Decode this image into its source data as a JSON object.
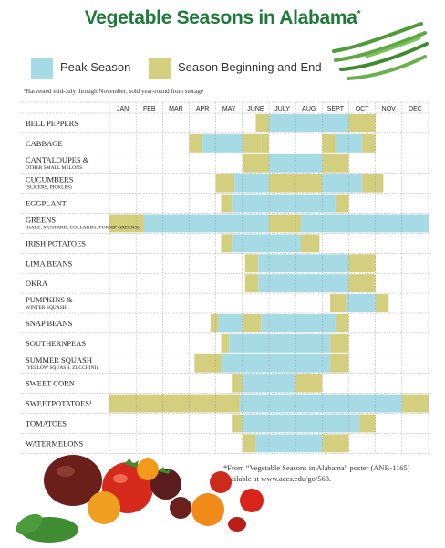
{
  "title": "Vegetable Seasons in Alabama",
  "title_mark": "*",
  "legend": {
    "peak": {
      "label": "Peak Season",
      "color": "#a6dbe6"
    },
    "edge": {
      "label": "Season Beginning and End",
      "color": "#d3cf7e"
    }
  },
  "footnote_top": "¹Harvested mid-July through November; sold year-round from storage",
  "source_note": "*From “Vegetable Seasons in Alabama” poster (ANR-1165) available at www.aces.edu/go/563.",
  "chart_data": {
    "type": "table",
    "categories": [
      "JAN",
      "FEB",
      "MAR",
      "APR",
      "MAY",
      "JUNE",
      "JULY",
      "AUG",
      "SEPT",
      "OCT",
      "NOV",
      "DEC"
    ],
    "legend_placement": "top-left",
    "grid": true,
    "rows": [
      {
        "name": "BELL PEPPERS",
        "sub": "",
        "edge": [
          [
            5.5,
            6.0
          ],
          [
            9.0,
            10.0
          ]
        ],
        "peak": [
          [
            6.0,
            9.0
          ]
        ]
      },
      {
        "name": "CABBAGE",
        "sub": "",
        "edge": [
          [
            3.0,
            3.5
          ],
          [
            5.0,
            5.7
          ],
          [
            5.7,
            6.0
          ],
          [
            8.0,
            8.5
          ],
          [
            9.5,
            10.0
          ]
        ],
        "peak": [
          [
            3.5,
            5.0
          ],
          [
            8.5,
            9.5
          ]
        ]
      },
      {
        "name": "CANTALOUPES &",
        "sub": "OTHER SMALL MELONS",
        "edge": [
          [
            5.0,
            6.0
          ],
          [
            8.0,
            9.0
          ]
        ],
        "peak": [
          [
            6.0,
            8.0
          ]
        ]
      },
      {
        "name": "CUCUMBERS",
        "sub": "(SLICERS, PICKLES)",
        "edge": [
          [
            4.0,
            4.7
          ],
          [
            6.0,
            8.0
          ],
          [
            9.5,
            10.3
          ]
        ],
        "peak": [
          [
            4.7,
            6.0
          ],
          [
            8.0,
            9.5
          ]
        ]
      },
      {
        "name": "EGGPLANT",
        "sub": "",
        "edge": [
          [
            4.2,
            4.6
          ],
          [
            8.5,
            9.0
          ]
        ],
        "peak": [
          [
            4.6,
            8.5
          ]
        ]
      },
      {
        "name": "GREENS",
        "sub": "(KALE, MUSTARD, COLLARDS, TURNIP GREENS)",
        "edge": [
          [
            0,
            1.3
          ],
          [
            6.0,
            7.2
          ]
        ],
        "peak": [
          [
            1.3,
            6.0
          ],
          [
            7.2,
            12.0
          ]
        ]
      },
      {
        "name": "IRISH POTATOES",
        "sub": "",
        "edge": [
          [
            4.2,
            4.6
          ],
          [
            7.2,
            7.9
          ]
        ],
        "peak": [
          [
            4.6,
            7.2
          ]
        ]
      },
      {
        "name": "LIMA BEANS",
        "sub": "",
        "edge": [
          [
            5.1,
            5.6
          ],
          [
            9.0,
            10.0
          ]
        ],
        "peak": [
          [
            5.6,
            9.0
          ]
        ]
      },
      {
        "name": "OKRA",
        "sub": "",
        "edge": [
          [
            5.1,
            5.6
          ],
          [
            9.0,
            10.0
          ]
        ],
        "peak": [
          [
            5.6,
            9.0
          ]
        ]
      },
      {
        "name": "PUMPKINS &",
        "sub": "WINTER SQUASH",
        "edge": [
          [
            8.3,
            8.9
          ],
          [
            10.0,
            10.5
          ]
        ],
        "peak": [
          [
            8.9,
            10.0
          ]
        ]
      },
      {
        "name": "SNAP BEANS",
        "sub": "",
        "edge": [
          [
            3.8,
            4.1
          ],
          [
            5.0,
            5.7
          ],
          [
            8.5,
            9.0
          ]
        ],
        "peak": [
          [
            4.1,
            5.0
          ],
          [
            5.7,
            8.5
          ]
        ]
      },
      {
        "name": "SOUTHERNPEAS",
        "sub": "",
        "edge": [
          [
            4.2,
            4.5
          ],
          [
            8.3,
            9.0
          ]
        ],
        "peak": [
          [
            4.5,
            8.3
          ]
        ]
      },
      {
        "name": "SUMMER SQUASH",
        "sub": "(YELLOW SQUASH, ZUCCHINI)",
        "edge": [
          [
            3.2,
            4.2
          ],
          [
            8.3,
            9.0
          ]
        ],
        "peak": [
          [
            4.2,
            8.3
          ]
        ]
      },
      {
        "name": "SWEET CORN",
        "sub": "",
        "edge": [
          [
            4.6,
            5.0
          ],
          [
            7.0,
            8.0
          ]
        ],
        "peak": [
          [
            5.0,
            7.0
          ]
        ]
      },
      {
        "name": "SWEETPOTATOES¹",
        "sub": "",
        "edge": [
          [
            0,
            4.9
          ],
          [
            11.0,
            12.0
          ]
        ],
        "peak": [
          [
            4.9,
            11.0
          ]
        ]
      },
      {
        "name": "TOMATOES",
        "sub": "",
        "edge": [
          [
            4.6,
            5.0
          ],
          [
            9.4,
            10.0
          ]
        ],
        "peak": [
          [
            5.0,
            9.4
          ]
        ]
      },
      {
        "name": "WATERMELONS",
        "sub": "",
        "edge": [
          [
            5.0,
            5.5
          ],
          [
            8.0,
            9.0
          ]
        ],
        "peak": [
          [
            5.5,
            8.0
          ]
        ]
      }
    ]
  }
}
